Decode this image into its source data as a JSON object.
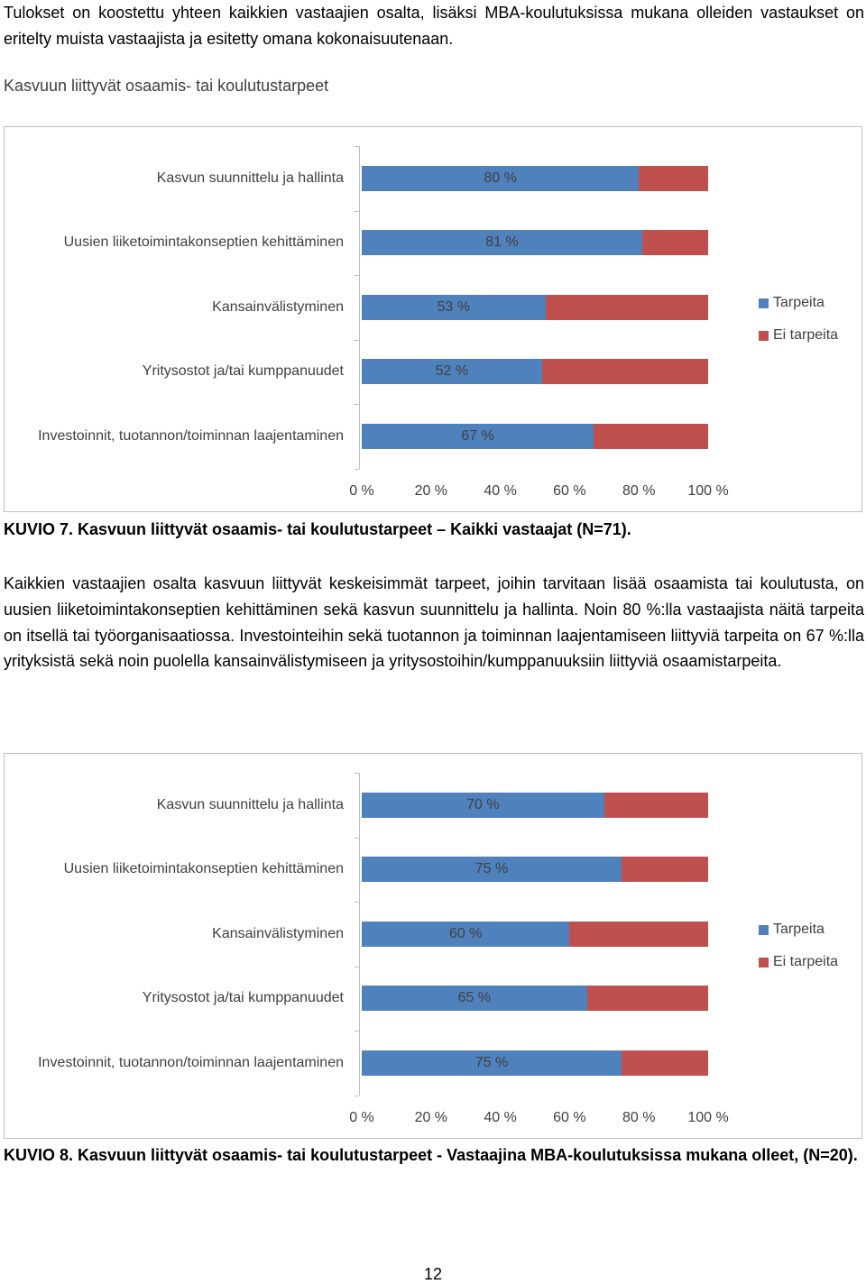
{
  "paragraphs": [
    "Tulokset on koostettu yhteen kaikkien vastaajien osalta, lisäksi MBA-koulutuksissa mukana olleiden vastaukset on eritelty muista vastaajista ja esitetty omana kokonaisuutenaan.",
    "Kaikkien vastaajien osalta kasvuun liittyvät keskeisimmät tarpeet, joihin tarvitaan lisää osaamista tai koulutusta, on uusien liiketoimintakonseptien kehittäminen sekä kasvun suunnittelu ja hallinta. Noin 80 %:lla vastaajista näitä tarpeita on itsellä tai työorganisaatiossa. Investointeihin sekä tuotannon ja toiminnan laajentamiseen liittyviä tarpeita on 67 %:lla yrityksistä sekä noin puolella kansainvälistymiseen ja yritysostoihin/kumppanuuksiin liittyviä osaamistarpeita."
  ],
  "captions": [
    "KUVIO 7. Kasvuun liittyvät osaamis- tai koulutustarpeet – Kaikki vastaajat (N=71).",
    "KUVIO 8. Kasvuun liittyvät osaamis- tai koulutustarpeet - Vastaajina MBA-koulutuksissa mukana olleet, (N=20)."
  ],
  "page_number": "12",
  "chart_data": [
    {
      "type": "bar",
      "orientation": "horizontal",
      "stacked": true,
      "title": "Kasvuun liittyvät osaamis- tai koulutustarpeet",
      "categories": [
        "Kasvun suunnittelu ja hallinta",
        "Uusien liiketoimintakonseptien kehittäminen",
        "Kansainvälistyminen",
        "Yritysostot ja/tai kumppanuudet",
        "Investoinnit, tuotannon/toiminnan laajentaminen"
      ],
      "series": [
        {
          "name": "Tarpeita",
          "color": "#4f81bd",
          "values": [
            80,
            81,
            53,
            52,
            67
          ],
          "value_labels": [
            "80 %",
            "81 %",
            "53 %",
            "52 %",
            "67 %"
          ]
        },
        {
          "name": "Ei tarpeita",
          "color": "#c0504d",
          "values": [
            20,
            19,
            47,
            48,
            33
          ]
        }
      ],
      "xlim": [
        0,
        100
      ],
      "xticks": [
        {
          "value": 0,
          "label": "0 %"
        },
        {
          "value": 20,
          "label": "20 %"
        },
        {
          "value": 40,
          "label": "40 %"
        },
        {
          "value": 60,
          "label": "60 %"
        },
        {
          "value": 80,
          "label": "80 %"
        },
        {
          "value": 100,
          "label": "100 %"
        }
      ],
      "legend": "right"
    },
    {
      "type": "bar",
      "orientation": "horizontal",
      "stacked": true,
      "categories": [
        "Kasvun suunnittelu ja hallinta",
        "Uusien liiketoimintakonseptien kehittäminen",
        "Kansainvälistyminen",
        "Yritysostot ja/tai kumppanuudet",
        "Investoinnit, tuotannon/toiminnan laajentaminen"
      ],
      "series": [
        {
          "name": "Tarpeita",
          "color": "#4f81bd",
          "values": [
            70,
            75,
            60,
            65,
            75
          ],
          "value_labels": [
            "70 %",
            "75 %",
            "60 %",
            "65 %",
            "75 %"
          ]
        },
        {
          "name": "Ei tarpeita",
          "color": "#c0504d",
          "values": [
            30,
            25,
            40,
            35,
            25
          ]
        }
      ],
      "xlim": [
        0,
        100
      ],
      "xticks": [
        {
          "value": 0,
          "label": "0 %"
        },
        {
          "value": 20,
          "label": "20 %"
        },
        {
          "value": 40,
          "label": "40 %"
        },
        {
          "value": 60,
          "label": "60 %"
        },
        {
          "value": 80,
          "label": "80 %"
        },
        {
          "value": 100,
          "label": "100 %"
        }
      ],
      "legend": "right"
    }
  ]
}
